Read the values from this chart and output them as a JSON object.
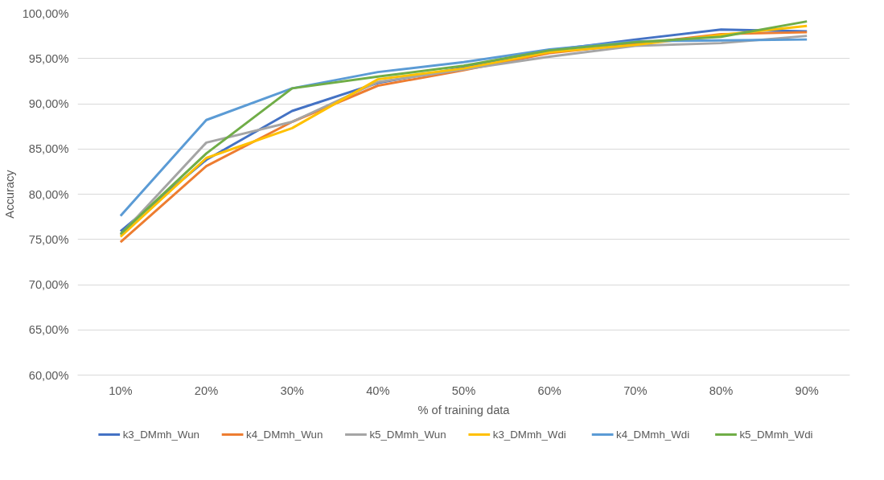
{
  "chart_data": {
    "type": "line",
    "xlabel": "% of training data",
    "ylabel": "Accuracy",
    "categories": [
      "10%",
      "20%",
      "30%",
      "40%",
      "50%",
      "60%",
      "70%",
      "80%",
      "90%"
    ],
    "series": [
      {
        "name": "k3_DMmh_Wun",
        "color": "#4472c4",
        "values": [
          75.9,
          83.8,
          89.2,
          92.3,
          94.0,
          95.9,
          97.1,
          98.2,
          98.0
        ]
      },
      {
        "name": "k4_DMmh_Wun",
        "color": "#ed7d31",
        "values": [
          74.7,
          83.1,
          88.0,
          92.0,
          93.7,
          95.6,
          96.6,
          97.7,
          97.9
        ]
      },
      {
        "name": "k5_DMmh_Wun",
        "color": "#a5a5a5",
        "values": [
          75.5,
          85.7,
          88.0,
          92.4,
          93.8,
          95.2,
          96.4,
          96.7,
          97.5
        ]
      },
      {
        "name": "k3_DMmh_Wdi",
        "color": "#ffc000",
        "values": [
          75.3,
          84.0,
          87.3,
          92.7,
          93.9,
          95.7,
          96.5,
          97.6,
          98.6
        ]
      },
      {
        "name": "k4_DMmh_Wdi",
        "color": "#5b9bd5",
        "values": [
          77.6,
          88.2,
          91.7,
          93.5,
          94.6,
          96.0,
          96.9,
          97.0,
          97.1
        ]
      },
      {
        "name": "k5_DMmh_Wdi",
        "color": "#70ad47",
        "values": [
          75.6,
          84.5,
          91.7,
          93.0,
          94.2,
          95.9,
          96.8,
          97.4,
          99.1
        ]
      }
    ],
    "ylim": [
      60,
      100
    ],
    "yticks": [
      {
        "value": 60,
        "label": "60,00%"
      },
      {
        "value": 65,
        "label": "65,00%"
      },
      {
        "value": 70,
        "label": "70,00%"
      },
      {
        "value": 75,
        "label": "75,00%"
      },
      {
        "value": 80,
        "label": "80,00%"
      },
      {
        "value": 85,
        "label": "85,00%"
      },
      {
        "value": 90,
        "label": "90,00%"
      },
      {
        "value": 95,
        "label": "95,00%"
      },
      {
        "value": 100,
        "label": "100,00%"
      }
    ],
    "grid": "y",
    "legend": "bottom",
    "marker": "none",
    "line_style": "solid"
  }
}
